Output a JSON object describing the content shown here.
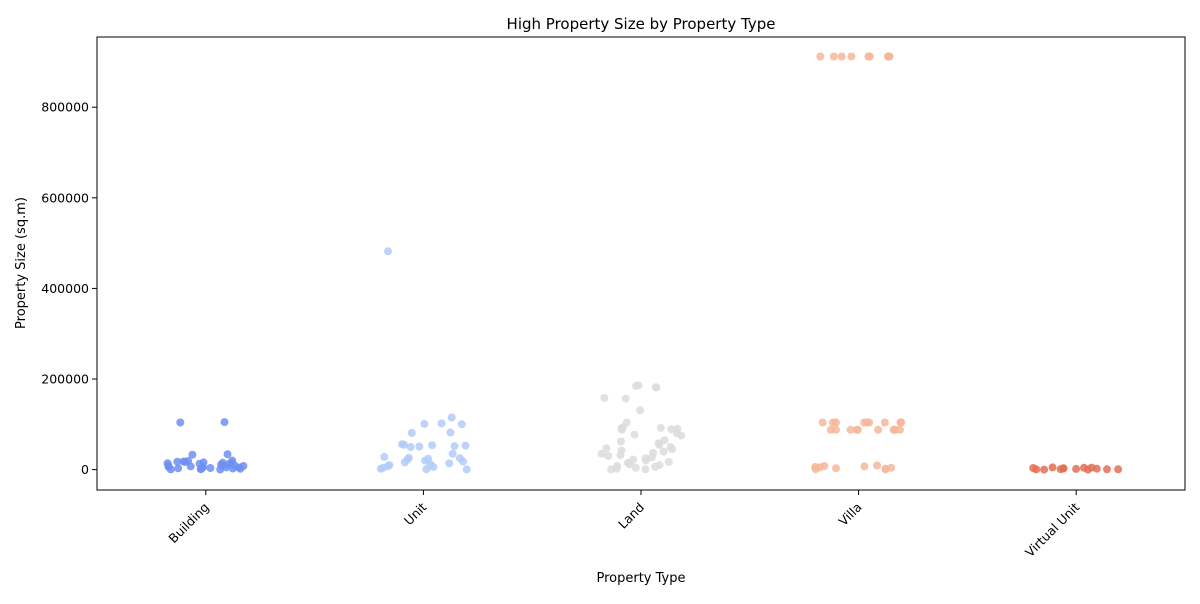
{
  "chart_data": {
    "type": "scatter",
    "title": "High Property Size by Property Type",
    "xlabel": "Property Type",
    "ylabel": "Property Size (sq.m)",
    "categories": [
      "Building",
      "Unit",
      "Land",
      "Villa",
      "Virtual Unit"
    ],
    "ylim": [
      -45000,
      955000
    ],
    "yticks": [
      0,
      200000,
      400000,
      600000,
      800000
    ],
    "ytick_labels": [
      "0",
      "200000",
      "400000",
      "600000",
      "800000"
    ],
    "grid": false,
    "legend": "none",
    "series": [
      {
        "category": "Building",
        "color": "#6f8ff2",
        "values": [
          105000,
          104000,
          34000,
          33000,
          20000,
          19000,
          18000,
          17500,
          17000,
          16000,
          15000,
          14500,
          14000,
          13000,
          12000,
          11000,
          10000,
          9000,
          8500,
          8000,
          7000,
          6000,
          5500,
          5000,
          4500,
          4000,
          3500,
          3000,
          2500,
          2000,
          1500,
          1000,
          500,
          200
        ]
      },
      {
        "category": "Unit",
        "color": "#b2cbf8",
        "values": [
          482000,
          115000,
          102000,
          101000,
          100000,
          82000,
          81000,
          56000,
          55000,
          54000,
          53000,
          52000,
          51000,
          50000,
          35000,
          28000,
          26000,
          25000,
          24000,
          22000,
          20000,
          18000,
          16000,
          14000,
          12000,
          10000,
          8000,
          6000,
          4000,
          2000,
          1000,
          500
        ]
      },
      {
        "category": "Land",
        "color": "#dcdcdc",
        "values": [
          186000,
          185000,
          182000,
          181000,
          158000,
          157000,
          131000,
          104000,
          93000,
          92000,
          91000,
          90000,
          89000,
          88000,
          80000,
          77000,
          75000,
          65000,
          62000,
          58000,
          55000,
          50000,
          47000,
          45000,
          42000,
          40000,
          37000,
          35000,
          32000,
          30000,
          27000,
          25000,
          22000,
          20000,
          17000,
          15000,
          12000,
          10000,
          8000,
          6000,
          4000,
          2000,
          1000,
          500
        ]
      },
      {
        "category": "Villa",
        "color": "#f4b79a",
        "values": [
          912000,
          912000,
          912000,
          912000,
          912000,
          912000,
          912000,
          912000,
          912000,
          912000,
          104000,
          104000,
          104000,
          104000,
          104000,
          104000,
          104000,
          104000,
          104000,
          104000,
          88000,
          88000,
          88000,
          88000,
          88000,
          88000,
          88000,
          88000,
          88000,
          88000,
          9000,
          8000,
          7000,
          6000,
          5000,
          4000,
          3000,
          2000,
          1000,
          500
        ]
      },
      {
        "category": "Virtual Unit",
        "color": "#e36f55",
        "values": [
          5000,
          4500,
          4000,
          3500,
          3000,
          2500,
          2000,
          1500,
          1000,
          800,
          600,
          400,
          200,
          100
        ]
      }
    ]
  }
}
